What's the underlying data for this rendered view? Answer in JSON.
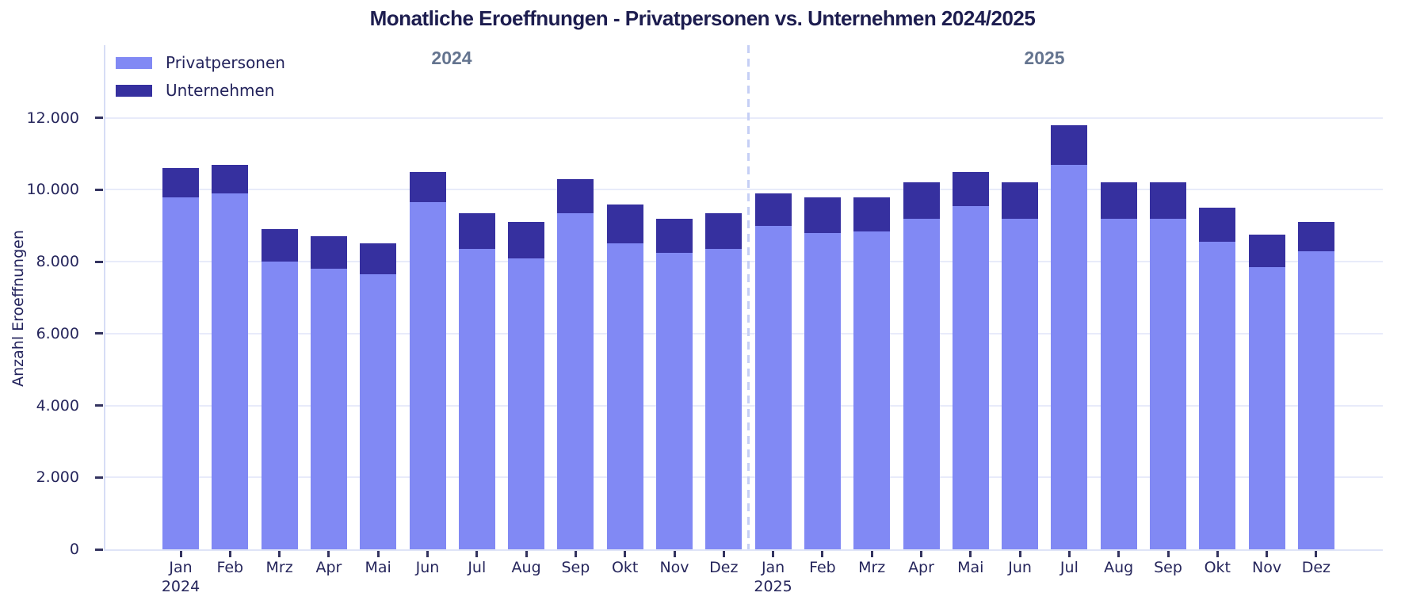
{
  "title": "Monatliche Eroeffnungen - Privatpersonen vs. Unternehmen 2024/2025",
  "y_axis": {
    "label": "Anzahl Eroeffnungen",
    "ticks": [
      {
        "value": 0,
        "label": "0"
      },
      {
        "value": 2000,
        "label": "2.000"
      },
      {
        "value": 4000,
        "label": "4.000"
      },
      {
        "value": 6000,
        "label": "6.000"
      },
      {
        "value": 8000,
        "label": "8.000"
      },
      {
        "value": 10000,
        "label": "10.000"
      },
      {
        "value": 12000,
        "label": "12.000"
      }
    ]
  },
  "annotations": {
    "year_left": "2024",
    "year_right": "2025"
  },
  "legend": [
    {
      "label": "Privatpersonen",
      "color": "#8189f4"
    },
    {
      "label": "Unternehmen",
      "color": "#36309f"
    }
  ],
  "chart_data": {
    "type": "bar",
    "stacked": true,
    "grid": "horizontal",
    "legend_position": "upper-left",
    "ylim": [
      0,
      14000
    ],
    "categories": [
      "Jan",
      "Feb",
      "Mrz",
      "Apr",
      "Mai",
      "Jun",
      "Jul",
      "Aug",
      "Sep",
      "Okt",
      "Nov",
      "Dez",
      "Jan",
      "Feb",
      "Mrz",
      "Apr",
      "Mai",
      "Jun",
      "Jul",
      "Aug",
      "Sep",
      "Okt",
      "Nov",
      "Dez"
    ],
    "x_sublabels": {
      "0": "2024",
      "12": "2025"
    },
    "year_separator_between": [
      11,
      12
    ],
    "series": [
      {
        "name": "Privatpersonen",
        "color": "#8189f4",
        "values": [
          9800,
          9900,
          8000,
          7800,
          7650,
          9650,
          8350,
          8100,
          9350,
          8500,
          8250,
          8350,
          9000,
          8800,
          8850,
          9200,
          9550,
          9200,
          10700,
          9200,
          9200,
          8550,
          7850,
          8300
        ]
      },
      {
        "name": "Unternehmen",
        "color": "#36309f",
        "values": [
          800,
          800,
          900,
          900,
          850,
          850,
          1000,
          1000,
          950,
          1100,
          950,
          1000,
          900,
          1000,
          950,
          1000,
          950,
          1000,
          1100,
          1000,
          1000,
          950,
          900,
          800
        ]
      }
    ]
  }
}
